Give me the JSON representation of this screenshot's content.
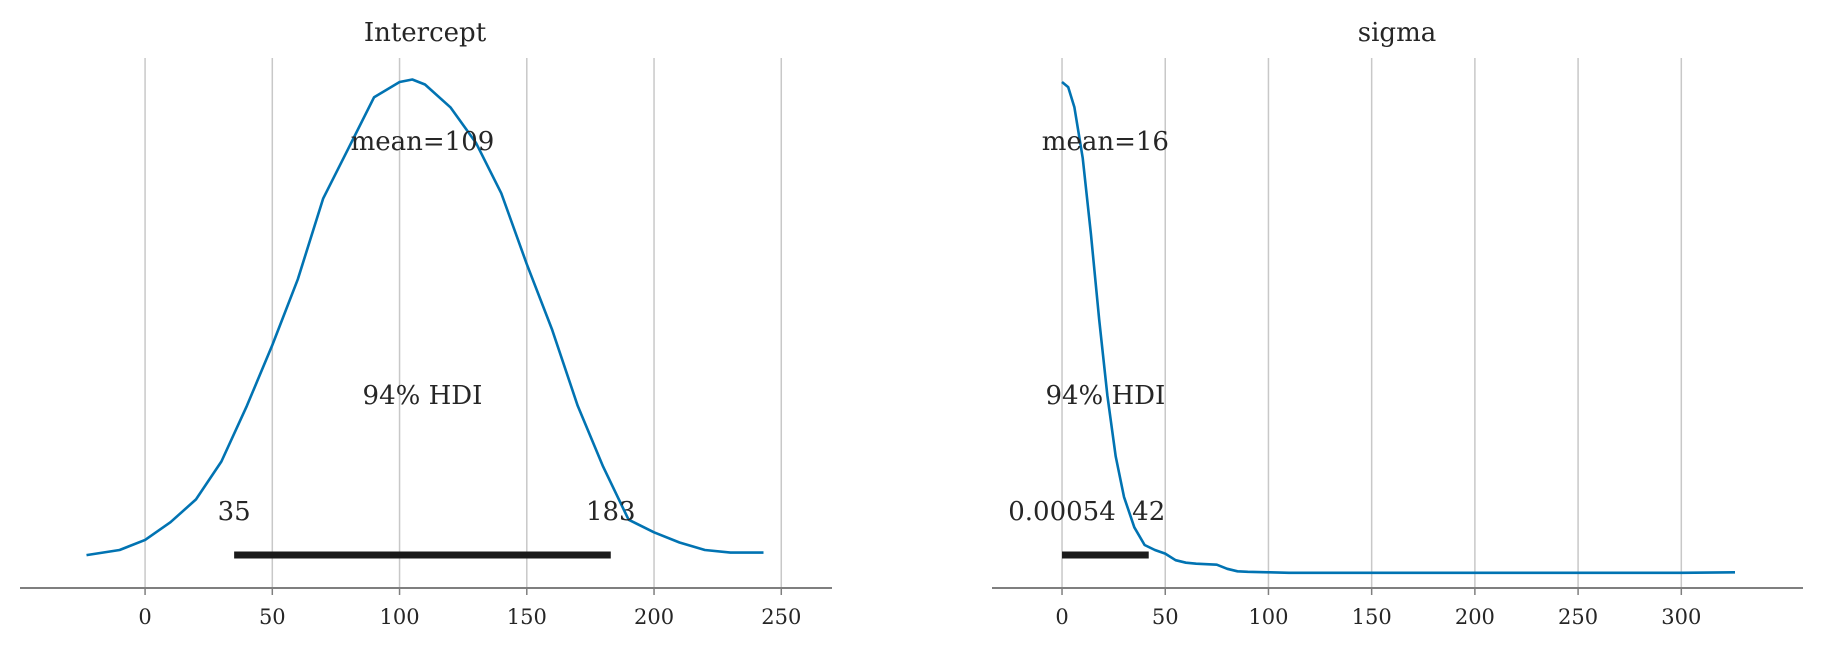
{
  "chart_data": [
    {
      "type": "line",
      "title": "Intercept",
      "xlim": [
        -35,
        255
      ],
      "ylim": [
        0,
        1.05
      ],
      "xticks": [
        0,
        50,
        100,
        150,
        200,
        250
      ],
      "grid": true,
      "mean_label": "mean=109",
      "hdi_label": "94% HDI",
      "hdi": {
        "low": 35,
        "high": 183,
        "low_label": "35",
        "high_label": "183"
      },
      "color": "#0173b2",
      "hdi_color": "#1a1a1a",
      "series": [
        {
          "x": [
            -23,
            -10,
            0,
            10,
            20,
            30,
            40,
            50,
            60,
            70,
            80,
            90,
            100,
            105,
            110,
            120,
            130,
            140,
            150,
            160,
            170,
            180,
            190,
            200,
            210,
            220,
            230,
            243
          ],
          "y": [
            0.065,
            0.075,
            0.095,
            0.13,
            0.175,
            0.25,
            0.36,
            0.48,
            0.61,
            0.77,
            0.87,
            0.97,
            1.0,
            1.005,
            0.995,
            0.95,
            0.88,
            0.78,
            0.64,
            0.51,
            0.36,
            0.24,
            0.135,
            0.11,
            0.09,
            0.075,
            0.07,
            0.07
          ]
        }
      ]
    },
    {
      "type": "line",
      "title": "sigma",
      "xlim": [
        -16,
        342
      ],
      "ylim": [
        0,
        1.05
      ],
      "xticks": [
        0,
        50,
        100,
        150,
        200,
        250,
        300
      ],
      "grid": true,
      "mean_label": "mean=16",
      "hdi_label": "94% HDI",
      "hdi": {
        "low": 0.00054,
        "high": 42,
        "low_label": "0.00054",
        "high_label": "42"
      },
      "color": "#0173b2",
      "hdi_color": "#1a1a1a",
      "series": [
        {
          "x": [
            0,
            3,
            6,
            10,
            14,
            18,
            22,
            26,
            30,
            35,
            40,
            45,
            50,
            55,
            60,
            65,
            70,
            75,
            80,
            85,
            90,
            100,
            110,
            130,
            150,
            200,
            250,
            300,
            326
          ],
          "y": [
            1.0,
            0.99,
            0.95,
            0.85,
            0.7,
            0.53,
            0.38,
            0.26,
            0.18,
            0.12,
            0.085,
            0.075,
            0.068,
            0.055,
            0.05,
            0.048,
            0.047,
            0.046,
            0.038,
            0.033,
            0.032,
            0.031,
            0.03,
            0.03,
            0.03,
            0.03,
            0.03,
            0.03,
            0.031
          ]
        }
      ]
    }
  ]
}
